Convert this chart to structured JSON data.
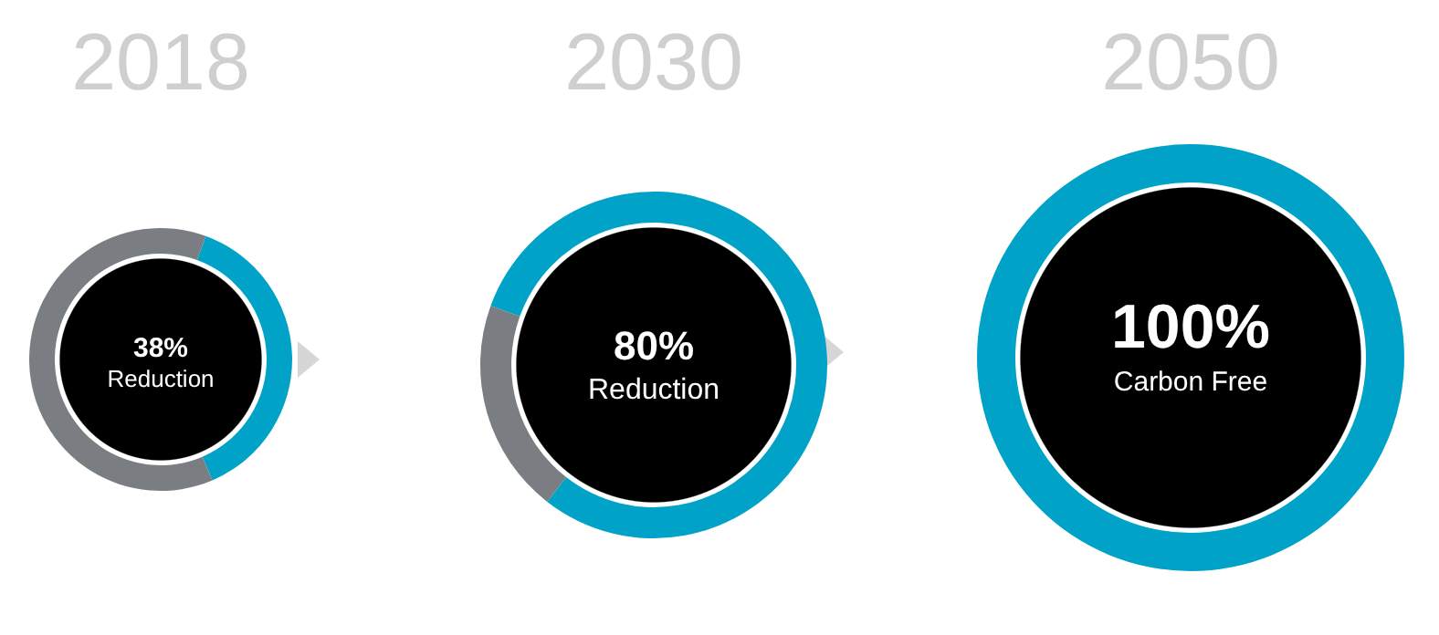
{
  "chart_data": [
    {
      "type": "donut",
      "title": "2018",
      "categories": [
        null,
        null
      ],
      "values": [
        38,
        62
      ],
      "colors": [
        "#00a3c7",
        "#7a7d82"
      ],
      "annotations": [
        "38%",
        "Reduction"
      ]
    },
    {
      "type": "donut",
      "title": "2030",
      "categories": [
        null,
        null
      ],
      "values": [
        80,
        20
      ],
      "colors": [
        "#00a3c7",
        "#7a7d82"
      ],
      "annotations": [
        "80%",
        "Reduction"
      ]
    },
    {
      "type": "donut",
      "title": "2050",
      "categories": [
        null
      ],
      "values": [
        100
      ],
      "colors": [
        "#00a3c7"
      ],
      "annotations": [
        "100%",
        "Carbon Free"
      ]
    }
  ]
}
